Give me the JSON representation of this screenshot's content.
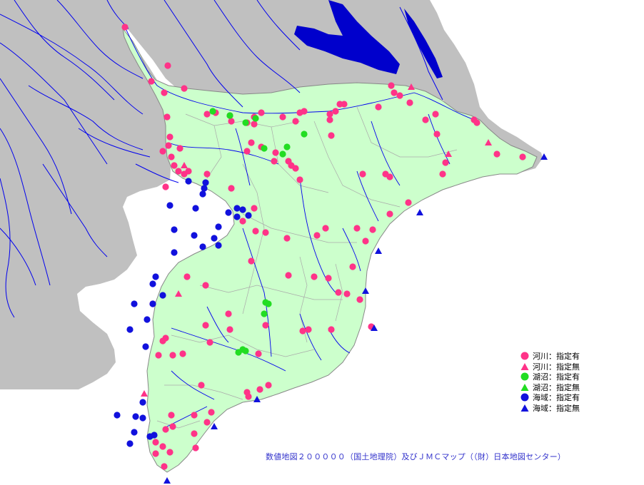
{
  "colors": {
    "background": "#ffffff",
    "land_outside": "#c0c0c0",
    "chiba_land": "#ccffcc",
    "border": "#999999",
    "river": "#0000ee",
    "lake": "#0000cc",
    "river_site": "#ff3388",
    "lake_site": "#22dd22",
    "sea_site": "#1111dd",
    "credit_text": "#3333cc"
  },
  "legend": [
    {
      "symbol": "circle",
      "color": "#ff3388",
      "label": "河川：指定有"
    },
    {
      "symbol": "triangle",
      "color": "#ff3388",
      "label": "河川：指定無"
    },
    {
      "symbol": "circle",
      "color": "#22dd22",
      "label": "湖沼：指定有"
    },
    {
      "symbol": "triangle",
      "color": "#22dd22",
      "label": "湖沼：指定無"
    },
    {
      "symbol": "circle",
      "color": "#1111dd",
      "label": "海域：指定有"
    },
    {
      "symbol": "triangle",
      "color": "#1111dd",
      "label": "海域：指定無"
    }
  ],
  "credit": "数値地図２０００００（国土地理院）及びＪＭＣマップ（（財）日本地図センター）"
}
